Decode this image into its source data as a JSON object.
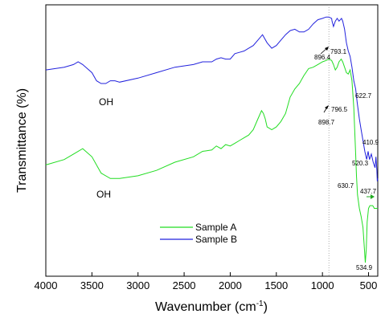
{
  "chart_data": {
    "type": "line",
    "title": "",
    "xlabel": "Wavenumber (cm",
    "xlabel_sup": "-1",
    "xlabel_close": ")",
    "ylabel": "Transmittance (%)",
    "xlim": [
      4000,
      400
    ],
    "x_reversed": true,
    "y_ticks_shown": false,
    "x_ticks": [
      4000,
      3500,
      3000,
      2500,
      2000,
      1500,
      1000,
      500
    ],
    "x_tick_labels": [
      "4000",
      "3500",
      "3000",
      "2500",
      "2000",
      "1500",
      "1000",
      "500"
    ],
    "ylim": [
      0,
      100
    ],
    "grid": false,
    "legend_position": "lower-middle",
    "reference_line": {
      "x": 930,
      "style": "dotted",
      "color": "#999999"
    },
    "series": [
      {
        "name": "Sample A",
        "color": "#22dd22",
        "x": [
          4000,
          3800,
          3700,
          3600,
          3500,
          3400,
          3300,
          3200,
          3000,
          2800,
          2600,
          2400,
          2300,
          2200,
          2150,
          2100,
          2050,
          2000,
          1950,
          1900,
          1850,
          1800,
          1750,
          1700,
          1660,
          1640,
          1620,
          1600,
          1550,
          1500,
          1450,
          1400,
          1350,
          1300,
          1250,
          1200,
          1150,
          1100,
          1050,
          1000,
          960,
          930,
          900,
          880,
          860,
          840,
          820,
          797,
          780,
          760,
          740,
          720,
          700,
          680,
          660,
          640,
          631,
          620,
          600,
          580,
          560,
          545,
          535,
          525,
          515,
          500,
          485,
          470,
          455,
          445,
          438,
          430,
          420,
          410,
          405,
          400
        ],
        "y": [
          41,
          43,
          45,
          47,
          44,
          38,
          36,
          36,
          37,
          39,
          42,
          44,
          46,
          46.5,
          48,
          47,
          48.5,
          48,
          49,
          50,
          51,
          52,
          54,
          58,
          61,
          60,
          58,
          55,
          54,
          55,
          57,
          60,
          66,
          69,
          71,
          74,
          76.5,
          77,
          78,
          79,
          79.5,
          80,
          79.5,
          78,
          76,
          77,
          79,
          80,
          79,
          77,
          75,
          74.5,
          76,
          72,
          62,
          45,
          37,
          30,
          25,
          22,
          18,
          10,
          5,
          10,
          20,
          25,
          26,
          26,
          26,
          25.5,
          25,
          25,
          25,
          25,
          25,
          25
        ]
      },
      {
        "name": "Sample B",
        "color": "#2222dd",
        "x": [
          4000,
          3800,
          3700,
          3650,
          3600,
          3500,
          3450,
          3400,
          3350,
          3300,
          3250,
          3200,
          3000,
          2800,
          2600,
          2400,
          2300,
          2200,
          2150,
          2100,
          2050,
          2000,
          1950,
          1900,
          1850,
          1800,
          1750,
          1700,
          1650,
          1600,
          1550,
          1500,
          1450,
          1400,
          1350,
          1300,
          1250,
          1200,
          1150,
          1100,
          1050,
          1000,
          960,
          930,
          900,
          896,
          880,
          860,
          840,
          820,
          793,
          780,
          760,
          740,
          720,
          700,
          680,
          660,
          640,
          623,
          600,
          580,
          560,
          540,
          520,
          505,
          490,
          470,
          450,
          430,
          420,
          410,
          405,
          400
        ],
        "y": [
          76,
          77,
          78,
          79,
          78,
          75,
          72,
          71,
          71,
          72,
          72,
          71.5,
          73,
          75,
          77,
          78,
          79,
          79,
          80,
          80.5,
          80,
          80,
          82,
          82.5,
          83,
          84,
          85,
          87,
          89,
          86,
          84,
          85,
          87,
          89,
          90.5,
          91,
          90,
          90,
          91,
          93,
          94.5,
          95,
          95.5,
          95.5,
          95,
          94,
          92,
          94,
          95,
          94,
          95,
          94,
          91,
          86,
          83,
          81,
          77,
          72,
          69,
          64,
          58,
          54,
          50,
          46,
          43,
          46,
          43,
          45,
          42,
          40,
          44,
          39,
          35,
          36
        ]
      }
    ],
    "annotations": {
      "OH_A": {
        "text": "OH",
        "series": "Sample A"
      },
      "OH_B": {
        "text": "OH",
        "series": "Sample B"
      },
      "peaks": [
        {
          "text": "896.4",
          "x": 896.4,
          "series": "Sample B",
          "arrow": true
        },
        {
          "text": "793.1",
          "x": 793.1,
          "series": "Sample B"
        },
        {
          "text": "622.7",
          "x": 622.7,
          "series": "Sample B"
        },
        {
          "text": "520.3",
          "x": 520.3,
          "series": "Sample B"
        },
        {
          "text": "410.9",
          "x": 410.9,
          "series": "Sample B"
        },
        {
          "text": "898.7",
          "x": 898.7,
          "series": "Sample A",
          "arrow": true
        },
        {
          "text": "796.5",
          "x": 796.5,
          "series": "Sample A"
        },
        {
          "text": "630.7",
          "x": 630.7,
          "series": "Sample A"
        },
        {
          "text": "437.7",
          "x": 437.7,
          "series": "Sample A",
          "arrow": true
        },
        {
          "text": "534.9",
          "x": 534.9,
          "series": "Sample A"
        }
      ]
    }
  }
}
